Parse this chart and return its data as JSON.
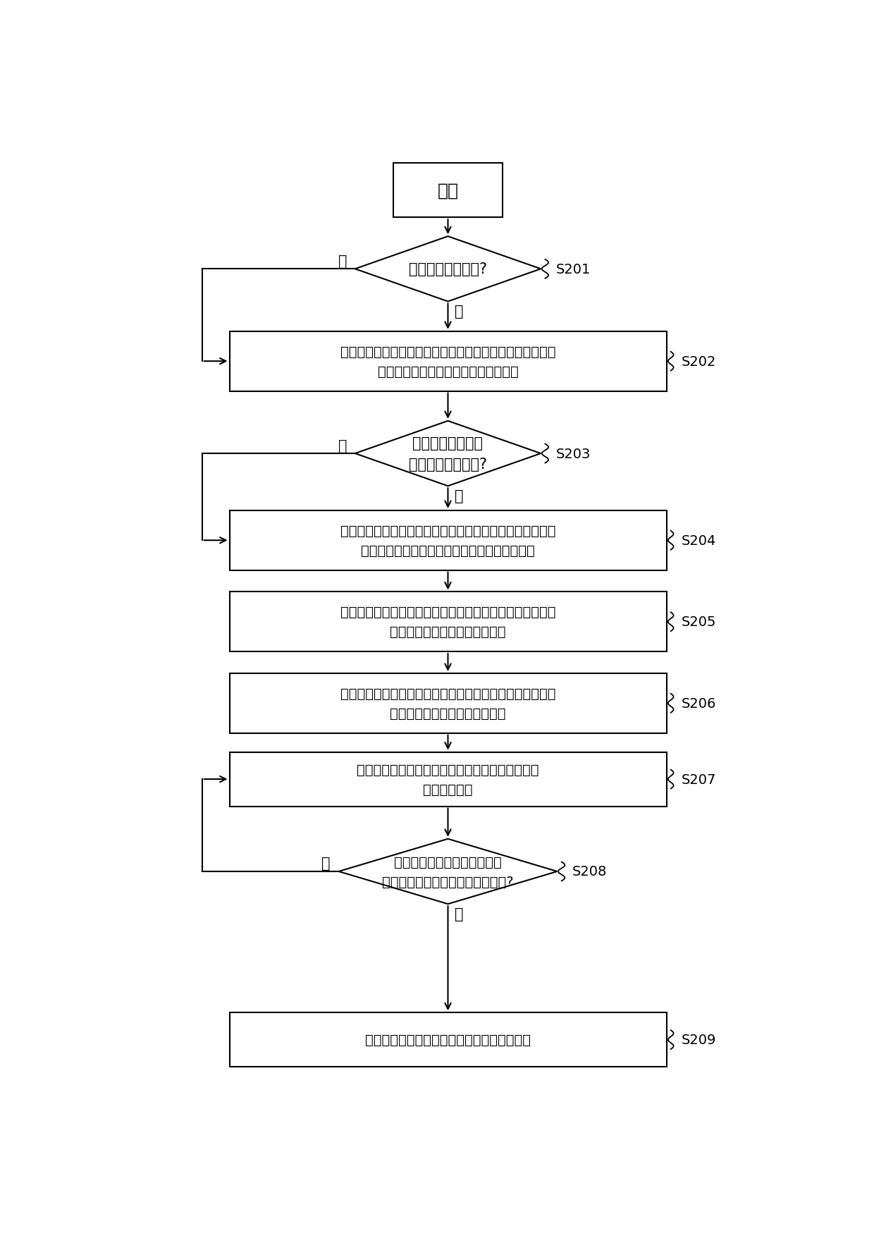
{
  "background_color": "#ffffff",
  "start_text": "开始",
  "nodes": [
    {
      "id": "S201",
      "type": "diamond",
      "text": "空调需要进行除霜?",
      "label": "S201"
    },
    {
      "id": "S202",
      "type": "rect",
      "text": "获得空调本次开机运行后记录的室外换热器的上部壳体温度\n最大值与上部壳体温度的第一温度差值",
      "label": "S202"
    },
    {
      "id": "S203",
      "type": "diamond",
      "text": "第一温度差值大于\n第一预设温差阈值?",
      "label": "S203"
    },
    {
      "id": "S204",
      "type": "rect",
      "text": "根据室内盘管温度与第三预设温度的第一温度差值获取第一\n室外风机目标降速值和第一室内风机目标降速值",
      "label": "S204"
    },
    {
      "id": "S205",
      "type": "rect",
      "text": "基于室外风机的当前运行转速，控制按照第一室外风机目标\n降速值减小室外风机的运行转速",
      "label": "S205"
    },
    {
      "id": "S206",
      "type": "rect",
      "text": "基于室内风机的当前运行转速，控制按照第一室内风机目标\n降速值减小室内风机的运行转速",
      "label": "S206"
    },
    {
      "id": "S207",
      "type": "rect",
      "text": "获得室外换热器的室外盘管温度、冷媒出液温度和\n上部壳体温度",
      "label": "S207"
    },
    {
      "id": "S208",
      "type": "diamond",
      "text": "室外盘管温度、冷媒出液温度\n和上部壳体温度满足除霜退出条件?",
      "label": "S208"
    },
    {
      "id": "S209",
      "type": "rect",
      "text": "控制停止减小室外风机和室内风机的运行转速",
      "label": "S209"
    }
  ],
  "no_label": "否",
  "yes_label": "是",
  "label_fontsize": 15,
  "text_fontsize": 14,
  "step_fontsize": 14
}
